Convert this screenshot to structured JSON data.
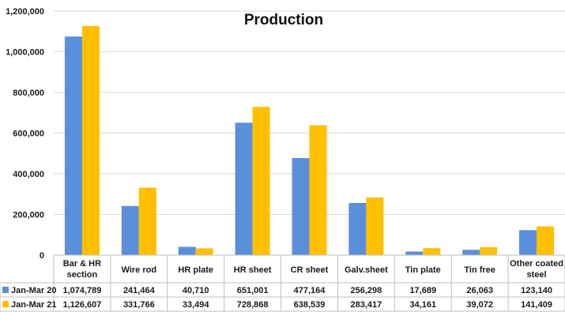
{
  "chart_data": {
    "type": "bar",
    "title": "Production",
    "categories": [
      [
        "Bar & HR",
        "section"
      ],
      [
        "Wire rod"
      ],
      [
        "HR plate"
      ],
      [
        "HR sheet"
      ],
      [
        "CR sheet"
      ],
      [
        "Galv.sheet"
      ],
      [
        "Tin plate"
      ],
      [
        "Tin free"
      ],
      [
        "Other coated",
        "steel"
      ]
    ],
    "series": [
      {
        "name": "Jan-Mar 20",
        "color": "#5B8FD9",
        "values": [
          1074789,
          241464,
          40710,
          651001,
          477164,
          256298,
          17689,
          26063,
          123140
        ],
        "labels": [
          "1,074,789",
          "241,464",
          "40,710",
          "651,001",
          "477,164",
          "256,298",
          "17,689",
          "26,063",
          "123,140"
        ]
      },
      {
        "name": "Jan-Mar 21",
        "color": "#FFC000",
        "values": [
          1126607,
          331766,
          33494,
          728868,
          638539,
          283417,
          34161,
          39072,
          141409
        ],
        "labels": [
          "1,126,607",
          "331,766",
          "33,494",
          "728,868",
          "638,539",
          "283,417",
          "34,161",
          "39,072",
          "141,409"
        ]
      }
    ],
    "ylim": [
      0,
      1200000
    ],
    "yticks": [
      0,
      200000,
      400000,
      600000,
      800000,
      1000000,
      1200000
    ],
    "ytick_labels": [
      "0",
      "200,000",
      "400,000",
      "600,000",
      "800,000",
      "1,000,000",
      "1,200,000"
    ],
    "grid": true,
    "legend": "data-table-left"
  }
}
